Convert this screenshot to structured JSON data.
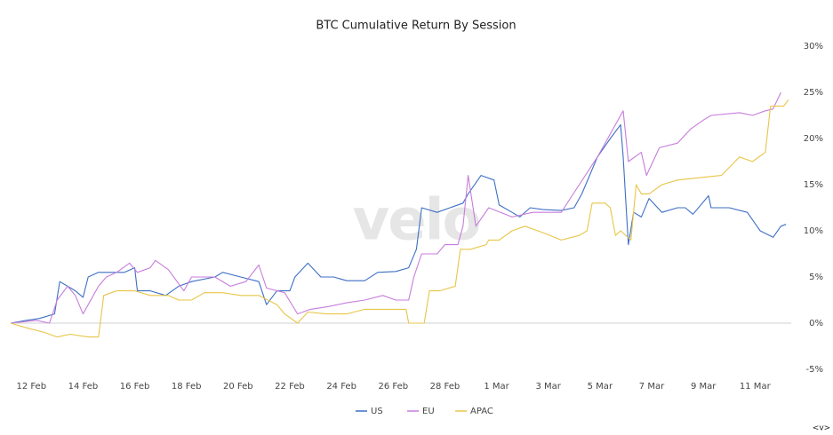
{
  "chart_data": {
    "type": "line",
    "title": "BTC Cumulative Return By Session",
    "watermark": "velo",
    "corner_icon": "<v>",
    "xlim": [
      -0.8,
      29.4
    ],
    "xticks": [
      {
        "value": 0,
        "label": "12 Feb"
      },
      {
        "value": 2,
        "label": "14 Feb"
      },
      {
        "value": 4,
        "label": "16 Feb"
      },
      {
        "value": 6,
        "label": "18 Feb"
      },
      {
        "value": 8,
        "label": "20 Feb"
      },
      {
        "value": 10,
        "label": "22 Feb"
      },
      {
        "value": 12,
        "label": "24 Feb"
      },
      {
        "value": 14,
        "label": "26 Feb"
      },
      {
        "value": 16,
        "label": "28 Feb"
      },
      {
        "value": 18,
        "label": "1 Mar"
      },
      {
        "value": 20,
        "label": "3 Mar"
      },
      {
        "value": 22,
        "label": "5 Mar"
      },
      {
        "value": 24,
        "label": "7 Mar"
      },
      {
        "value": 26,
        "label": "9 Mar"
      },
      {
        "value": 28,
        "label": "11 Mar"
      }
    ],
    "ylim": [
      -5,
      30
    ],
    "yticks": [
      {
        "value": -5,
        "label": "-5%"
      },
      {
        "value": 0,
        "label": "0%"
      },
      {
        "value": 5,
        "label": "5%"
      },
      {
        "value": 10,
        "label": "10%"
      },
      {
        "value": 15,
        "label": "15%"
      },
      {
        "value": 20,
        "label": "20%"
      },
      {
        "value": 25,
        "label": "25%"
      },
      {
        "value": 30,
        "label": "30%"
      }
    ],
    "grid": false,
    "legend": "bottom",
    "series": [
      {
        "name": "US",
        "color": "#3d6fc4",
        "x": [
          -0.8,
          -0.2,
          0.3,
          0.9,
          1.1,
          1.4,
          1.7,
          2.0,
          2.2,
          2.6,
          3.1,
          3.6,
          4.0,
          4.1,
          4.6,
          5.2,
          5.7,
          6.2,
          7.1,
          7.4,
          8.1,
          8.8,
          9.1,
          9.5,
          10.0,
          10.2,
          10.7,
          11.2,
          11.7,
          12.2,
          12.9,
          13.4,
          14.1,
          14.6,
          14.9,
          15.1,
          15.7,
          16.2,
          16.7,
          16.9,
          17.4,
          17.9,
          18.1,
          18.6,
          18.9,
          19.3,
          19.8,
          20.5,
          21.0,
          21.3,
          21.9,
          22.4,
          22.8,
          22.9,
          23.1,
          23.3,
          23.6,
          23.9,
          24.4,
          25.0,
          25.3,
          25.6,
          26.2,
          26.3,
          27.0,
          27.7,
          28.2,
          28.7,
          29.0,
          29.2
        ],
        "values": [
          0,
          0.3,
          0.5,
          1,
          4.5,
          4,
          3.5,
          2.8,
          5,
          5.5,
          5.5,
          5.5,
          6,
          3.5,
          3.5,
          3,
          4,
          4.5,
          5,
          5.5,
          5,
          4.5,
          2,
          3.5,
          3.5,
          5,
          6.5,
          5,
          5,
          4.6,
          4.6,
          5.5,
          5.6,
          6,
          8,
          12.5,
          12,
          12.5,
          13,
          14,
          16,
          15.5,
          12.8,
          12,
          11.5,
          12.5,
          12.3,
          12.2,
          12.5,
          14,
          18,
          20,
          21.5,
          18,
          8.5,
          12,
          11.5,
          13.5,
          12,
          12.5,
          12.5,
          11.8,
          13.8,
          12.5,
          12.5,
          12,
          10,
          9.3,
          10.5,
          10.7
        ]
      },
      {
        "name": "EU",
        "color": "#c77ddc",
        "x": [
          -0.8,
          0.2,
          0.7,
          1.0,
          1.4,
          1.7,
          2.0,
          2.2,
          2.6,
          2.9,
          3.3,
          3.8,
          4.1,
          4.6,
          4.8,
          5.3,
          5.9,
          6.2,
          7.1,
          7.7,
          8.3,
          8.8,
          9.1,
          9.8,
          10.3,
          10.8,
          11.5,
          12.2,
          12.9,
          13.6,
          14.1,
          14.6,
          14.8,
          15.1,
          15.7,
          16.0,
          16.5,
          16.7,
          16.9,
          17.2,
          17.7,
          18.6,
          19.4,
          20.5,
          21.2,
          21.9,
          22.5,
          22.9,
          23.1,
          23.6,
          23.8,
          24.3,
          25.0,
          25.5,
          26.0,
          26.3,
          27.4,
          27.9,
          28.4,
          28.7,
          29.0
        ],
        "values": [
          0,
          0.3,
          0,
          2.5,
          4,
          3,
          1,
          2,
          4,
          5,
          5.5,
          6.5,
          5.5,
          6,
          6.8,
          5.8,
          3.5,
          5,
          5,
          4,
          4.5,
          6.3,
          3.8,
          3.3,
          1,
          1.5,
          1.8,
          2.2,
          2.5,
          3,
          2.5,
          2.5,
          5,
          7.5,
          7.5,
          8.5,
          8.5,
          10.5,
          16,
          10.5,
          12.5,
          11.5,
          12,
          12,
          15,
          18,
          21,
          23,
          17.5,
          18.5,
          16,
          19,
          19.5,
          21,
          22,
          22.5,
          22.8,
          22.5,
          23,
          23.2,
          25
        ]
      },
      {
        "name": "APAC",
        "color": "#e8c547",
        "x": [
          -0.8,
          -0.2,
          0.5,
          1.0,
          1.5,
          2.2,
          2.6,
          2.8,
          3.3,
          4.0,
          4.6,
          5.3,
          5.7,
          6.2,
          6.7,
          7.4,
          8.1,
          8.8,
          9.5,
          9.8,
          10.3,
          10.7,
          11.4,
          12.2,
          12.9,
          13.6,
          14.5,
          14.6,
          15.2,
          15.4,
          15.8,
          16.4,
          16.6,
          17.0,
          17.6,
          17.7,
          18.1,
          18.6,
          19.1,
          19.8,
          20.5,
          21.2,
          21.5,
          21.7,
          22.2,
          22.4,
          22.6,
          22.8,
          23.2,
          23.4,
          23.6,
          23.9,
          24.4,
          25.0,
          26.0,
          26.7,
          27.4,
          27.9,
          28.4,
          28.6,
          29.1,
          29.3
        ],
        "values": [
          0,
          -0.5,
          -1,
          -1.5,
          -1.2,
          -1.5,
          -1.5,
          3,
          3.5,
          3.5,
          3,
          3,
          2.5,
          2.5,
          3.3,
          3.3,
          3,
          3,
          2,
          1,
          0,
          1.2,
          1,
          1,
          1.5,
          1.5,
          1.5,
          0,
          0,
          3.5,
          3.5,
          4,
          8,
          8,
          8.5,
          9,
          9,
          10,
          10.5,
          9.8,
          9,
          9.5,
          10,
          13,
          13,
          12.5,
          9.5,
          10,
          9,
          15,
          14,
          14,
          15,
          15.5,
          15.8,
          16,
          18,
          17.5,
          18.5,
          23.5,
          23.5,
          24.2
        ]
      }
    ]
  }
}
